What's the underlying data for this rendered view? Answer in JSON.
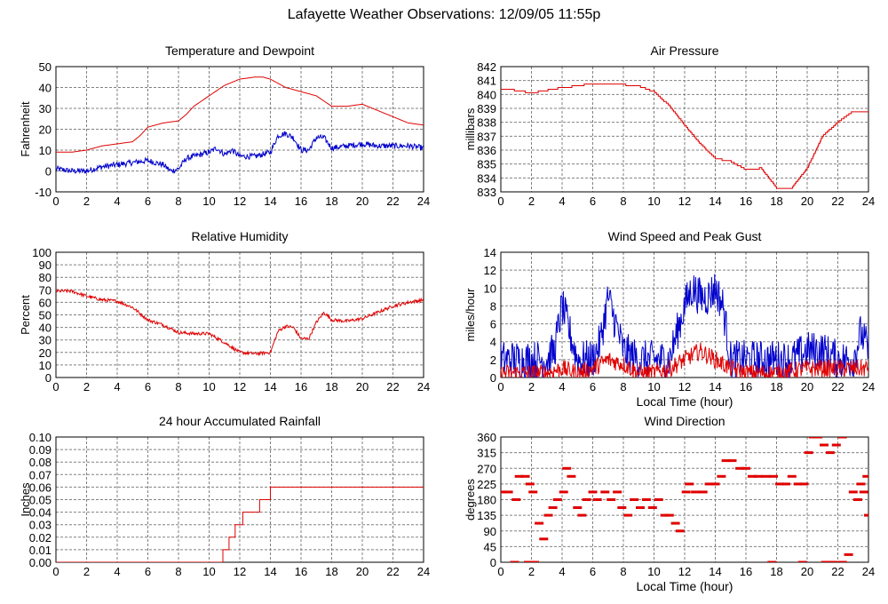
{
  "title": "Lafayette Weather Observations: 12/09/05 11:55p",
  "colors": {
    "red": "#e00000",
    "blue": "#0000cc",
    "grid": "#808080",
    "axis": "#000000"
  },
  "chart_data": [
    {
      "id": "temp",
      "type": "line",
      "title": "Temperature and Dewpoint",
      "xlabel": "",
      "ylabel": "Fahrenheit",
      "xlim": [
        0,
        24
      ],
      "ylim": [
        -10,
        50
      ],
      "xticks": [
        0,
        2,
        4,
        6,
        8,
        10,
        12,
        14,
        16,
        18,
        20,
        22,
        24
      ],
      "yticks": [
        -10,
        0,
        10,
        20,
        30,
        40,
        50
      ],
      "grid": true,
      "series": [
        {
          "color": "#e00000",
          "jitter": 0,
          "x": [
            0,
            1,
            2,
            3,
            4,
            5,
            5.5,
            6,
            7,
            8,
            8.5,
            9,
            10,
            11,
            12,
            13,
            13.5,
            14,
            15,
            16,
            17,
            18,
            19,
            20,
            21,
            22,
            23,
            24
          ],
          "y": [
            9,
            9,
            10,
            12,
            13,
            14,
            17,
            21,
            23,
            24,
            27,
            31,
            36,
            41,
            44,
            45,
            45,
            44,
            40,
            38,
            36,
            31,
            31,
            32,
            29,
            26,
            23,
            22
          ]
        },
        {
          "color": "#0000cc",
          "jitter": 1.4,
          "x": [
            0,
            1,
            2,
            3,
            4,
            5,
            6,
            7,
            7.5,
            8,
            8.5,
            9,
            10,
            10.5,
            11,
            11.5,
            12,
            13,
            14,
            14.5,
            15,
            15.5,
            16,
            16.5,
            17,
            17.5,
            18,
            19,
            20,
            21,
            22,
            23,
            24
          ],
          "y": [
            1,
            0,
            0,
            2,
            3,
            4,
            5,
            3,
            0,
            1,
            6,
            7,
            9,
            11,
            8,
            10,
            7,
            7,
            9,
            17,
            18,
            16,
            10,
            10,
            16,
            16,
            11,
            12,
            13,
            12,
            12,
            12,
            11
          ]
        }
      ]
    },
    {
      "id": "pressure",
      "type": "line",
      "title": "Air Pressure",
      "xlabel": "",
      "ylabel": "millibars",
      "xlim": [
        0,
        24
      ],
      "ylim": [
        833,
        842
      ],
      "xticks": [
        0,
        2,
        4,
        6,
        8,
        10,
        12,
        14,
        16,
        18,
        20,
        22,
        24
      ],
      "yticks": [
        833,
        834,
        835,
        836,
        837,
        838,
        839,
        840,
        841,
        842
      ],
      "grid": true,
      "series": [
        {
          "color": "#e00000",
          "jitter": 0,
          "step": 0.125,
          "x": [
            0,
            1,
            2,
            3,
            4,
            5,
            6,
            7,
            8,
            9,
            10,
            11,
            12,
            13,
            14,
            15,
            16,
            17,
            18,
            19,
            20,
            21,
            22,
            23,
            24
          ],
          "y": [
            840.4,
            840.3,
            840.1,
            840.3,
            840.5,
            840.6,
            840.8,
            840.8,
            840.7,
            840.6,
            840.2,
            839.2,
            837.8,
            836.5,
            835.4,
            835.2,
            834.6,
            834.7,
            833.3,
            833.3,
            834.7,
            837.0,
            838.0,
            838.8,
            838.8
          ]
        }
      ]
    },
    {
      "id": "humidity",
      "type": "line",
      "title": "Relative Humidity",
      "xlabel": "",
      "ylabel": "Percent",
      "xlim": [
        0,
        24
      ],
      "ylim": [
        0,
        100
      ],
      "xticks": [
        0,
        2,
        4,
        6,
        8,
        10,
        12,
        14,
        16,
        18,
        20,
        22,
        24
      ],
      "yticks": [
        0,
        10,
        20,
        30,
        40,
        50,
        60,
        70,
        80,
        90,
        100
      ],
      "grid": true,
      "series": [
        {
          "color": "#e00000",
          "jitter": 1.3,
          "x": [
            0,
            1,
            2,
            3,
            4,
            5,
            6,
            7,
            8,
            9,
            10,
            11,
            12,
            13,
            14,
            14.5,
            15,
            15.5,
            16,
            16.5,
            17,
            17.5,
            18,
            19,
            20,
            21,
            22,
            23,
            24
          ],
          "y": [
            69,
            69,
            65,
            62,
            61,
            56,
            46,
            42,
            36,
            35,
            35,
            28,
            20,
            19,
            20,
            37,
            41,
            40,
            31,
            31,
            44,
            52,
            46,
            45,
            47,
            52,
            57,
            60,
            62
          ]
        }
      ]
    },
    {
      "id": "wind",
      "type": "line",
      "title": "Wind Speed and Peak Gust",
      "xlabel": "Local Time (hour)",
      "ylabel": "miles/hour",
      "xlim": [
        0,
        24
      ],
      "ylim": [
        0,
        14
      ],
      "xticks": [
        0,
        2,
        4,
        6,
        8,
        10,
        12,
        14,
        16,
        18,
        20,
        22,
        24
      ],
      "yticks": [
        0,
        2,
        4,
        6,
        8,
        10,
        12,
        14
      ],
      "grid": true,
      "series": [
        {
          "color": "#0000cc",
          "jitter": 2.2,
          "floor": 0,
          "x": [
            0,
            1,
            2,
            3,
            3.5,
            4,
            4.5,
            5,
            6,
            6.5,
            7,
            7.5,
            8,
            9,
            10,
            11,
            12,
            12.5,
            13,
            13.5,
            14,
            14.5,
            15,
            16,
            17,
            18,
            19,
            20,
            21,
            22,
            23,
            23.5,
            24
          ],
          "y": [
            2,
            2,
            2,
            2,
            3,
            8,
            5,
            2,
            2,
            4,
            9,
            6,
            3,
            2,
            2,
            2,
            8,
            10,
            9,
            9,
            10,
            8,
            2,
            2,
            2,
            2,
            2,
            3,
            3,
            2,
            2,
            5,
            3
          ]
        },
        {
          "color": "#e00000",
          "jitter": 1.0,
          "floor": 0,
          "x": [
            0,
            2,
            3,
            4,
            5,
            6,
            7,
            8,
            9,
            10,
            11,
            12,
            13,
            14,
            15,
            16,
            18,
            20,
            22,
            23,
            24
          ],
          "y": [
            0.5,
            0.5,
            0.5,
            1,
            0.5,
            1,
            2,
            1.5,
            0.5,
            0.5,
            1,
            2,
            3,
            2,
            1,
            0.5,
            0.5,
            1,
            1,
            1,
            1
          ]
        }
      ]
    },
    {
      "id": "rain",
      "type": "line",
      "title": "24 hour Accumulated Rainfall",
      "xlabel": "",
      "ylabel": "Inches",
      "xlim": [
        0,
        24
      ],
      "ylim": [
        0,
        0.1
      ],
      "xticks": [
        0,
        2,
        4,
        6,
        8,
        10,
        12,
        14,
        16,
        18,
        20,
        22,
        24
      ],
      "yticks": [
        0,
        0.01,
        0.02,
        0.03,
        0.04,
        0.05,
        0.06,
        0.07,
        0.08,
        0.09,
        0.1
      ],
      "ytickLabels": [
        "0.00",
        "0.01",
        "0.02",
        "0.03",
        "0.04",
        "0.05",
        "0.06",
        "0.07",
        "0.08",
        "0.09",
        "0.10"
      ],
      "grid": true,
      "series": [
        {
          "color": "#e00000",
          "jitter": 0,
          "stepped": true,
          "x": [
            0,
            10.5,
            10.9,
            11.3,
            11.7,
            12.2,
            12.8,
            13.3,
            14,
            24
          ],
          "y": [
            0,
            0,
            0.01,
            0.02,
            0.03,
            0.04,
            0.04,
            0.05,
            0.06,
            0.06
          ]
        }
      ]
    },
    {
      "id": "direction",
      "type": "scatter",
      "title": "Wind Direction",
      "xlabel": "Local Time (hour)",
      "ylabel": "degrees",
      "xlim": [
        0,
        24
      ],
      "ylim": [
        0,
        360
      ],
      "xticks": [
        0,
        2,
        4,
        6,
        8,
        10,
        12,
        14,
        16,
        18,
        20,
        22,
        24
      ],
      "yticks": [
        0,
        45,
        90,
        135,
        180,
        225,
        270,
        315,
        360
      ],
      "grid": true,
      "points": [
        [
          0,
          202
        ],
        [
          0.5,
          202
        ],
        [
          1,
          180
        ],
        [
          1.2,
          247
        ],
        [
          1.6,
          247
        ],
        [
          1.9,
          225
        ],
        [
          2.1,
          202
        ],
        [
          2.5,
          112
        ],
        [
          2.8,
          67
        ],
        [
          3.1,
          135
        ],
        [
          3.4,
          157
        ],
        [
          3.7,
          180
        ],
        [
          4.1,
          202
        ],
        [
          4.3,
          270
        ],
        [
          4.6,
          247
        ],
        [
          5,
          157
        ],
        [
          5.3,
          135
        ],
        [
          5.6,
          180
        ],
        [
          6,
          202
        ],
        [
          6.3,
          180
        ],
        [
          6.8,
          202
        ],
        [
          7.2,
          180
        ],
        [
          7.6,
          202
        ],
        [
          7.9,
          157
        ],
        [
          8.3,
          135
        ],
        [
          8.7,
          180
        ],
        [
          9.1,
          157
        ],
        [
          9.5,
          180
        ],
        [
          9.9,
          157
        ],
        [
          10.3,
          180
        ],
        [
          10.7,
          135
        ],
        [
          11,
          135
        ],
        [
          11.4,
          112
        ],
        [
          11.7,
          90
        ],
        [
          12.1,
          202
        ],
        [
          12.3,
          225
        ],
        [
          12.7,
          202
        ],
        [
          13.2,
          202
        ],
        [
          13.6,
          225
        ],
        [
          14,
          225
        ],
        [
          14.4,
          247
        ],
        [
          14.7,
          292
        ],
        [
          15.1,
          292
        ],
        [
          15.6,
          270
        ],
        [
          16,
          270
        ],
        [
          16.4,
          247
        ],
        [
          16.8,
          247
        ],
        [
          17.3,
          247
        ],
        [
          17.8,
          247
        ],
        [
          18.2,
          225
        ],
        [
          18.6,
          225
        ],
        [
          19,
          247
        ],
        [
          19.4,
          225
        ],
        [
          19.8,
          225
        ],
        [
          20.1,
          315
        ],
        [
          20.4,
          360
        ],
        [
          20.7,
          360
        ],
        [
          21.1,
          337
        ],
        [
          21.5,
          315
        ],
        [
          21.9,
          337
        ],
        [
          22.3,
          360
        ],
        [
          22.7,
          22
        ],
        [
          23,
          202
        ],
        [
          23.3,
          180
        ],
        [
          23.5,
          225
        ],
        [
          23.7,
          202
        ],
        [
          23.9,
          247
        ],
        [
          24,
          135
        ]
      ],
      "zero_points": [
        [
          0.9,
          0
        ],
        [
          1.8,
          0
        ],
        [
          2.2,
          0
        ],
        [
          17.7,
          0
        ],
        [
          19.7,
          0
        ],
        [
          21.2,
          0
        ],
        [
          21.7,
          0
        ],
        [
          22.3,
          0
        ]
      ]
    }
  ]
}
